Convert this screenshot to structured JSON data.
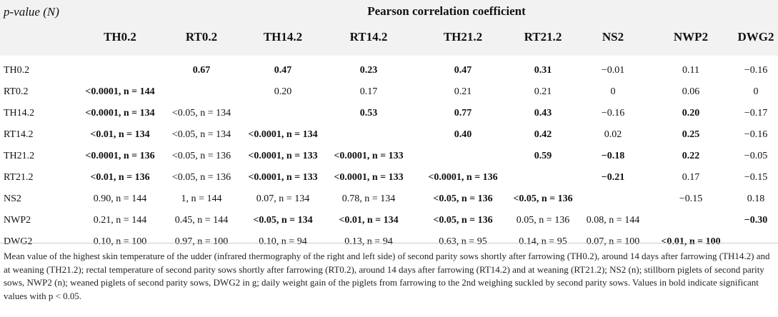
{
  "header": {
    "pvalue_label": "p",
    "pvalue_label_rest": "-value (N)",
    "pearson_title": "Pearson correlation coefficient",
    "columns": [
      "TH0.2",
      "RT0.2",
      "TH14.2",
      "RT14.2",
      "TH21.2",
      "RT21.2",
      "NS2",
      "NWP2",
      "DWG2"
    ]
  },
  "rows": [
    {
      "label": "TH0.2",
      "cells": [
        {
          "t": "",
          "b": false
        },
        {
          "t": "0.67",
          "b": true
        },
        {
          "t": "0.47",
          "b": true
        },
        {
          "t": "0.23",
          "b": true
        },
        {
          "t": "0.47",
          "b": true
        },
        {
          "t": "0.31",
          "b": true
        },
        {
          "t": "−0.01",
          "b": false
        },
        {
          "t": "0.11",
          "b": false
        },
        {
          "t": "−0.16",
          "b": false
        }
      ]
    },
    {
      "label": "RT0.2",
      "cells": [
        {
          "t": "<0.0001, n = 144",
          "b": true
        },
        {
          "t": "",
          "b": false
        },
        {
          "t": "0.20",
          "b": false
        },
        {
          "t": "0.17",
          "b": false
        },
        {
          "t": "0.21",
          "b": false
        },
        {
          "t": "0.21",
          "b": false
        },
        {
          "t": "0",
          "b": false
        },
        {
          "t": "0.06",
          "b": false
        },
        {
          "t": "0",
          "b": false
        }
      ]
    },
    {
      "label": "TH14.2",
      "cells": [
        {
          "t": "<0.0001, n = 134",
          "b": true
        },
        {
          "t": "<0.05, n = 134",
          "b": false
        },
        {
          "t": "",
          "b": false
        },
        {
          "t": "0.53",
          "b": true
        },
        {
          "t": "0.77",
          "b": true
        },
        {
          "t": "0.43",
          "b": true
        },
        {
          "t": "−0.16",
          "b": false
        },
        {
          "t": "0.20",
          "b": true
        },
        {
          "t": "−0.17",
          "b": false
        }
      ]
    },
    {
      "label": "RT14.2",
      "cells": [
        {
          "t": "<0.01, n = 134",
          "b": true
        },
        {
          "t": "<0.05, n = 134",
          "b": false
        },
        {
          "t": "<0.0001, n = 134",
          "b": true
        },
        {
          "t": "",
          "b": false
        },
        {
          "t": "0.40",
          "b": true
        },
        {
          "t": "0.42",
          "b": true
        },
        {
          "t": "0.02",
          "b": false
        },
        {
          "t": "0.25",
          "b": true
        },
        {
          "t": "−0.16",
          "b": false
        }
      ]
    },
    {
      "label": "TH21.2",
      "cells": [
        {
          "t": "<0.0001, n = 136",
          "b": true
        },
        {
          "t": "<0.05, n = 136",
          "b": false
        },
        {
          "t": "<0.0001, n = 133",
          "b": true
        },
        {
          "t": "<0.0001, n = 133",
          "b": true
        },
        {
          "t": "",
          "b": false
        },
        {
          "t": "0.59",
          "b": true
        },
        {
          "t": "−0.18",
          "b": true
        },
        {
          "t": "0.22",
          "b": true
        },
        {
          "t": "−0.05",
          "b": false
        }
      ]
    },
    {
      "label": "RT21.2",
      "cells": [
        {
          "t": "<0.01, n = 136",
          "b": true
        },
        {
          "t": "<0.05, n = 136",
          "b": false
        },
        {
          "t": "<0.0001, n = 133",
          "b": true
        },
        {
          "t": "<0.0001, n = 133",
          "b": true
        },
        {
          "t": "<0.0001, n = 136",
          "b": true
        },
        {
          "t": "",
          "b": false
        },
        {
          "t": "−0.21",
          "b": true
        },
        {
          "t": "0.17",
          "b": false
        },
        {
          "t": "−0.15",
          "b": false
        }
      ]
    },
    {
      "label": "NS2",
      "cells": [
        {
          "t": "0.90, n = 144",
          "b": false
        },
        {
          "t": "1, n = 144",
          "b": false
        },
        {
          "t": "0.07, n = 134",
          "b": false
        },
        {
          "t": "0.78, n = 134",
          "b": false
        },
        {
          "t": "<0.05, n = 136",
          "b": true
        },
        {
          "t": "<0.05, n = 136",
          "b": true
        },
        {
          "t": "",
          "b": false
        },
        {
          "t": "−0.15",
          "b": false
        },
        {
          "t": "0.18",
          "b": false
        }
      ]
    },
    {
      "label": "NWP2",
      "cells": [
        {
          "t": "0.21, n = 144",
          "b": false
        },
        {
          "t": "0.45, n = 144",
          "b": false
        },
        {
          "t": "<0.05, n = 134",
          "b": true
        },
        {
          "t": "<0.01, n = 134",
          "b": true
        },
        {
          "t": "<0.05, n = 136",
          "b": true
        },
        {
          "t": "0.05, n = 136",
          "b": false
        },
        {
          "t": "0.08, n = 144",
          "b": false
        },
        {
          "t": "",
          "b": false
        },
        {
          "t": "−0.30",
          "b": true
        }
      ]
    },
    {
      "label": "DWG2",
      "cells": [
        {
          "t": "0.10, n = 100",
          "b": false
        },
        {
          "t": "0.97, n = 100",
          "b": false
        },
        {
          "t": "0.10, n = 94",
          "b": false
        },
        {
          "t": "0.13, n = 94",
          "b": false
        },
        {
          "t": "0.63, n = 95",
          "b": false
        },
        {
          "t": "0.14, n = 95",
          "b": false
        },
        {
          "t": "0.07, n = 100",
          "b": false
        },
        {
          "t": "<0.01, n = 100",
          "b": true
        },
        {
          "t": "",
          "b": false
        }
      ]
    }
  ],
  "footnote": "Mean value of the highest skin temperature of the udder (infrared thermography of the right and left side) of second parity sows shortly after farrowing (TH0.2), around 14 days after farrowing (TH14.2) and at weaning (TH21.2); rectal temperature of second parity sows shortly after farrowing (RT0.2), around 14 days after farrowing (RT14.2) and at weaning (RT21.2); NS2 (n); stillborn piglets of second parity sows, NWP2 (n); weaned piglets of second parity sows, DWG2 in g; daily weight gain of the piglets from farrowing to the 2nd weighing suckled by second parity sows. Values in bold indicate significant values with p < 0.05."
}
